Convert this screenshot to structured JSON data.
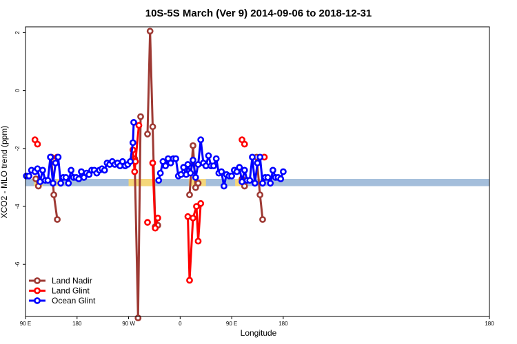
{
  "chart_data": {
    "type": "line",
    "title": "10S-5S March (Ver 9)   2014-09-06 to 2018-12-31",
    "xlabel": "Longitude",
    "ylabel": "XCO2 - MLO trend (ppm)",
    "xlim": [
      -90,
      180
    ],
    "ylim": [
      -7.8,
      2.2
    ],
    "x_ticks": [
      {
        "value": -90,
        "label": "90 E"
      },
      {
        "value": -60,
        "label": "180"
      },
      {
        "value": -30,
        "label": "90 W"
      },
      {
        "value": 0,
        "label": "0"
      },
      {
        "value": 30,
        "label": "90 E"
      },
      {
        "value": 60,
        "label": "180"
      }
    ],
    "y_ticks": [
      {
        "value": 2,
        "label": "2"
      },
      {
        "value": 0,
        "label": "0"
      },
      {
        "value": -2,
        "label": "-2"
      },
      {
        "value": -4,
        "label": "-4"
      },
      {
        "value": -6,
        "label": "-6"
      }
    ],
    "band": {
      "y_lower": -3.3,
      "y_upper": -3.05,
      "color": "#a4bedb",
      "highlight_color": "#f5d77a",
      "highlight_ranges": [
        [
          -85,
          -80
        ],
        [
          -72,
          -70
        ],
        [
          -30,
          -15
        ],
        [
          5,
          15
        ],
        [
          32,
          38
        ],
        [
          46,
          48
        ]
      ]
    },
    "series": [
      {
        "name": "Land Nadir",
        "color": "#9e3a34",
        "segments": [
          {
            "x": [
              -84.0,
              -82.5
            ],
            "y": [
              -3.05,
              -3.3
            ]
          },
          {
            "x": [
              -75.0,
              -73.5,
              -71.5
            ],
            "y": [
              -2.3,
              -3.6,
              -4.45
            ]
          },
          {
            "x": [
              -26.5,
              -24.5,
              -23.0
            ],
            "y": [
              -2.35,
              -7.85,
              -0.9
            ]
          },
          {
            "x": [
              -19.0,
              -17.5,
              -16.0,
              -14.5,
              -13.0
            ],
            "y": [
              -1.5,
              2.05,
              -1.25,
              -4.7,
              -4.65
            ]
          },
          {
            "x": [
              5.5,
              7.5,
              9.0,
              10.5
            ],
            "y": [
              -3.6,
              -1.9,
              -3.35,
              -3.2
            ]
          },
          {
            "x": [
              36.0,
              37.5
            ],
            "y": [
              -3.05,
              -3.3
            ]
          },
          {
            "x": [
              44.5,
              46.5,
              48.0
            ],
            "y": [
              -2.3,
              -3.6,
              -4.45
            ]
          }
        ]
      },
      {
        "name": "Land Glint",
        "color": "#ff0000",
        "segments": [
          {
            "x": [
              -84.5,
              -83.0
            ],
            "y": [
              -1.7,
              -1.85
            ]
          },
          {
            "x": [
              -71.5
            ],
            "y": [
              -2.3
            ]
          },
          {
            "x": [
              -27.5,
              -26.5,
              -26.0,
              -24.0
            ],
            "y": [
              -2.05,
              -2.8,
              -2.45,
              -1.2
            ]
          },
          {
            "x": [
              -19.0
            ],
            "y": [
              -4.55
            ]
          },
          {
            "x": [
              -16.0,
              -14.5,
              -13.0
            ],
            "y": [
              -2.5,
              -4.75,
              -4.4
            ]
          },
          {
            "x": [
              4.5,
              5.5,
              7.5,
              9.5,
              10.5,
              12.0
            ],
            "y": [
              -4.35,
              -6.55,
              -4.4,
              -4.0,
              -5.2,
              -3.9
            ]
          },
          {
            "x": [
              36.0,
              37.5
            ],
            "y": [
              -1.7,
              -1.85
            ]
          },
          {
            "x": [
              49.0
            ],
            "y": [
              -2.3
            ]
          }
        ]
      },
      {
        "name": "Ocean Glint",
        "color": "#0000ff",
        "segments": [
          {
            "x": [
              -89.5,
              -88.0,
              -86.5,
              -84.5,
              -83.0,
              -81.5,
              -80.0,
              -78.5,
              -77.0,
              -75.5,
              -74.0,
              -72.5,
              -71.0,
              -69.5,
              -68.0,
              -66.5,
              -65.0,
              -63.5,
              -62.0,
              -60.5,
              -59.0,
              -57.5,
              -56.0,
              -54.5,
              -53.0,
              -51.5,
              -50.0,
              -48.5,
              -47.0,
              -45.5,
              -44.0,
              -42.5,
              -41.0,
              -39.5,
              -38.0,
              -36.5,
              -35.0,
              -33.5,
              -32.0,
              -30.5,
              -29.0,
              -27.5,
              -27.0
            ],
            "y": [
              -2.95,
              -2.95,
              -2.75,
              -2.8,
              -2.7,
              -3.15,
              -2.75,
              -3.1,
              -3.1,
              -2.3,
              -3.2,
              -2.5,
              -2.3,
              -3.2,
              -3.0,
              -3.0,
              -3.2,
              -2.75,
              -3.0,
              -3.0,
              -3.05,
              -2.8,
              -3.0,
              -2.85,
              -2.9,
              -2.75,
              -2.75,
              -2.85,
              -2.75,
              -2.7,
              -2.75,
              -2.5,
              -2.55,
              -2.45,
              -2.55,
              -2.5,
              -2.6,
              -2.45,
              -2.6,
              -2.55,
              -2.45,
              -1.8,
              -1.1
            ]
          },
          {
            "x": [
              -12.5,
              -11.5,
              -10.0,
              -8.5,
              -7.0,
              -5.5,
              -4.0,
              -2.5,
              -1.0,
              0.5,
              2.0,
              3.5,
              4.5,
              6.0,
              7.5,
              9.0,
              10.5,
              12.0,
              13.5,
              15.0,
              16.5,
              18.0,
              19.5,
              21.0,
              22.5,
              24.0,
              25.5,
              27.0,
              28.5,
              30.0,
              31.5,
              33.0,
              34.5,
              36.0,
              37.5,
              39.0,
              40.5,
              42.0,
              43.5,
              45.0,
              46.5,
              48.0,
              49.5,
              51.0,
              52.5,
              54.0,
              55.5,
              57.0,
              58.5,
              60.0
            ],
            "y": [
              -3.1,
              -2.85,
              -2.45,
              -2.6,
              -2.35,
              -2.5,
              -2.35,
              -2.35,
              -2.95,
              -2.9,
              -2.65,
              -2.9,
              -2.55,
              -2.85,
              -2.4,
              -3.0,
              -2.55,
              -1.7,
              -2.5,
              -2.6,
              -2.25,
              -2.6,
              -2.6,
              -2.35,
              -2.85,
              -2.8,
              -3.3,
              -2.9,
              -2.95,
              -2.95,
              -2.75,
              -2.8,
              -2.65,
              -3.15,
              -2.75,
              -3.1,
              -3.1,
              -2.3,
              -3.2,
              -2.5,
              -2.3,
              -3.2,
              -3.0,
              -3.0,
              -3.2,
              -2.75,
              -3.0,
              -3.0,
              -3.05,
              -2.8
            ]
          }
        ]
      }
    ],
    "legend": {
      "position": "bottom-left",
      "entries": [
        "Land Nadir",
        "Land Glint",
        "Ocean Glint"
      ]
    }
  }
}
